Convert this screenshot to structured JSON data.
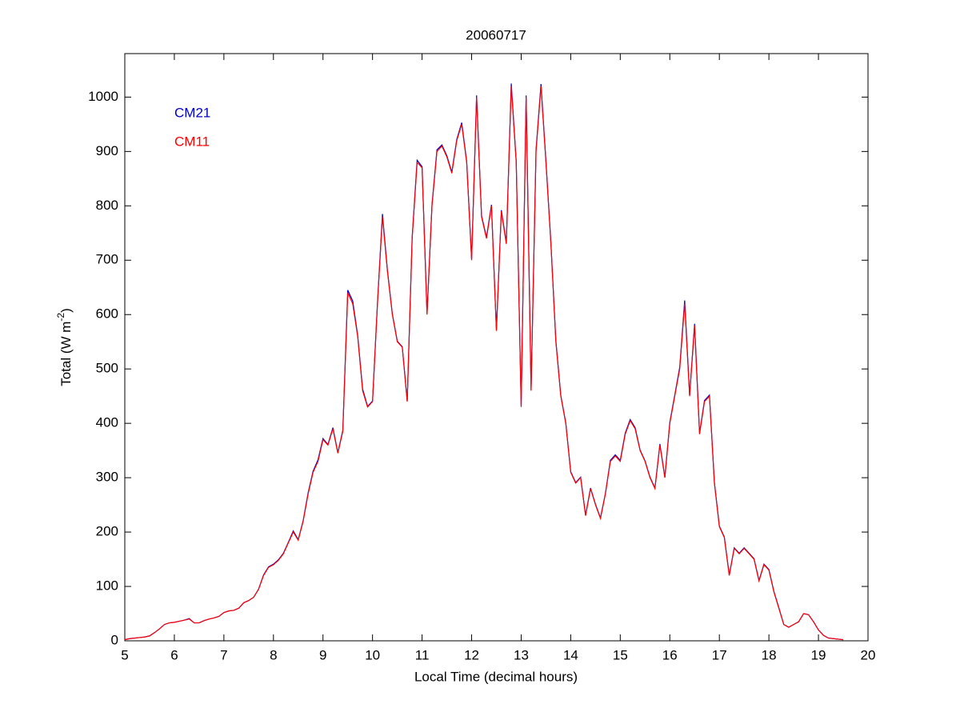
{
  "chart_data": {
    "type": "line",
    "title": "20060717",
    "x_label": "Local Time (decimal hours)",
    "y_label": {
      "text": "Total (W m",
      "superscript": "-2",
      "suffix": ")"
    },
    "xlim": [
      5,
      20
    ],
    "ylim": [
      0,
      1080
    ],
    "xticks": [
      5,
      6,
      7,
      8,
      9,
      10,
      11,
      12,
      13,
      14,
      15,
      16,
      17,
      18,
      19,
      20
    ],
    "yticks": [
      0,
      100,
      200,
      300,
      400,
      500,
      600,
      700,
      800,
      900,
      1000
    ],
    "grid": false,
    "legend": "upper left",
    "x": [
      5.0,
      5.1,
      5.2,
      5.3,
      5.4,
      5.5,
      5.6,
      5.7,
      5.8,
      5.9,
      6.0,
      6.1,
      6.2,
      6.3,
      6.4,
      6.5,
      6.6,
      6.7,
      6.8,
      6.9,
      7.0,
      7.1,
      7.2,
      7.3,
      7.4,
      7.5,
      7.6,
      7.7,
      7.8,
      7.9,
      8.0,
      8.1,
      8.2,
      8.3,
      8.4,
      8.5,
      8.6,
      8.7,
      8.8,
      8.9,
      9.0,
      9.1,
      9.2,
      9.3,
      9.4,
      9.5,
      9.6,
      9.7,
      9.8,
      9.9,
      10.0,
      10.1,
      10.2,
      10.3,
      10.4,
      10.5,
      10.6,
      10.7,
      10.8,
      10.9,
      11.0,
      11.1,
      11.2,
      11.3,
      11.4,
      11.5,
      11.6,
      11.7,
      11.8,
      11.9,
      12.0,
      12.1,
      12.2,
      12.3,
      12.4,
      12.5,
      12.6,
      12.7,
      12.8,
      12.9,
      13.0,
      13.1,
      13.2,
      13.3,
      13.4,
      13.5,
      13.6,
      13.7,
      13.8,
      13.9,
      14.0,
      14.1,
      14.2,
      14.3,
      14.4,
      14.5,
      14.6,
      14.7,
      14.8,
      14.9,
      15.0,
      15.1,
      15.2,
      15.3,
      15.4,
      15.5,
      15.6,
      15.7,
      15.8,
      15.9,
      16.0,
      16.1,
      16.2,
      16.3,
      16.4,
      16.5,
      16.6,
      16.7,
      16.8,
      16.9,
      17.0,
      17.1,
      17.2,
      17.3,
      17.4,
      17.5,
      17.6,
      17.7,
      17.8,
      17.9,
      18.0,
      18.1,
      18.2,
      18.3,
      18.4,
      18.5,
      18.6,
      18.7,
      18.8,
      18.9,
      19.0,
      19.1,
      19.2,
      19.3,
      19.4,
      19.5
    ],
    "series": [
      {
        "name": "CM21",
        "color": "#0000cc",
        "values": [
          2,
          4,
          5,
          6,
          7,
          9,
          15,
          22,
          30,
          33,
          34,
          36,
          38,
          41,
          33,
          33,
          37,
          40,
          42,
          45,
          52,
          55,
          56,
          60,
          70,
          74,
          80,
          95,
          121,
          136,
          141,
          149,
          161,
          181,
          202,
          186,
          221,
          272,
          312,
          333,
          372,
          361,
          392,
          346,
          387,
          645,
          625,
          562,
          463,
          431,
          441,
          622,
          785,
          682,
          601,
          551,
          541,
          441,
          742,
          884,
          872,
          602,
          802,
          903,
          912,
          892,
          862,
          922,
          953,
          882,
          702,
          1003,
          782,
          742,
          802,
          572,
          792,
          732,
          1025,
          882,
          432,
          1003,
          462,
          903,
          1024,
          882,
          732,
          552,
          451,
          401,
          311,
          291,
          301,
          231,
          281,
          251,
          226,
          271,
          332,
          342,
          332,
          382,
          407,
          392,
          351,
          331,
          301,
          281,
          362,
          301,
          402,
          452,
          503,
          626,
          452,
          583,
          382,
          442,
          452,
          291,
          211,
          191,
          121,
          171,
          161,
          171,
          161,
          151,
          111,
          141,
          131,
          91,
          61,
          30,
          25,
          30,
          35,
          50,
          48,
          35,
          20,
          10,
          5,
          4,
          3,
          2
        ]
      },
      {
        "name": "CM11",
        "color": "#ff0000",
        "values": [
          2,
          4,
          5,
          6,
          7,
          9,
          15,
          22,
          30,
          33,
          34,
          36,
          38,
          40,
          33,
          33,
          37,
          40,
          42,
          45,
          52,
          55,
          56,
          60,
          70,
          74,
          80,
          95,
          120,
          135,
          140,
          148,
          160,
          180,
          200,
          185,
          220,
          270,
          310,
          330,
          370,
          360,
          390,
          345,
          385,
          640,
          620,
          560,
          460,
          430,
          440,
          620,
          780,
          680,
          600,
          550,
          540,
          440,
          740,
          880,
          870,
          600,
          800,
          900,
          910,
          890,
          860,
          920,
          950,
          880,
          700,
          1000,
          780,
          740,
          800,
          570,
          790,
          730,
          1020,
          880,
          430,
          1000,
          460,
          900,
          1020,
          880,
          730,
          550,
          450,
          400,
          310,
          290,
          300,
          230,
          280,
          250,
          225,
          270,
          330,
          340,
          330,
          380,
          405,
          390,
          350,
          330,
          300,
          280,
          360,
          300,
          400,
          450,
          500,
          620,
          450,
          580,
          380,
          440,
          450,
          290,
          210,
          190,
          120,
          170,
          160,
          170,
          160,
          150,
          110,
          140,
          130,
          90,
          60,
          30,
          25,
          30,
          35,
          50,
          48,
          35,
          20,
          10,
          5,
          4,
          3,
          2
        ]
      }
    ]
  }
}
